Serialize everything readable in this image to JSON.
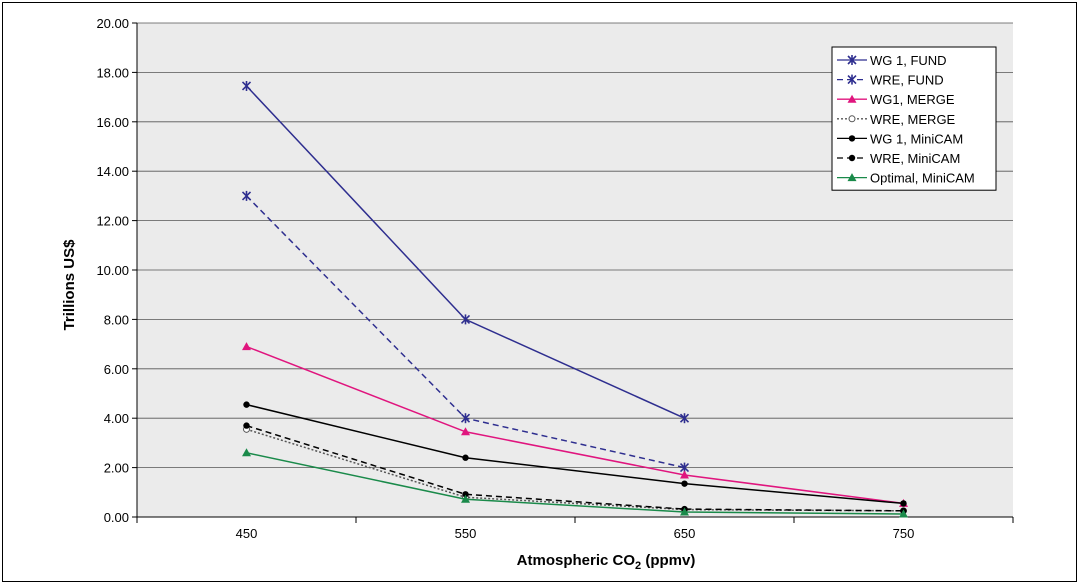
{
  "chart_data": {
    "type": "line",
    "xlabel": "Atmospheric CO",
    "xlabel_subscript": "2",
    "xlabel_suffix": " (ppmv)",
    "ylabel": "Trillions US$",
    "x": [
      450,
      550,
      650,
      750
    ],
    "x_tick_labels": [
      "450",
      "550",
      "650",
      "750"
    ],
    "y_ticks": [
      "0.00",
      "2.00",
      "4.00",
      "6.00",
      "8.00",
      "10.00",
      "12.00",
      "14.00",
      "16.00",
      "18.00",
      "20.00"
    ],
    "ylim": [
      0,
      20
    ],
    "xlim": [
      400,
      800
    ],
    "grid": true,
    "legend_position": "top-right",
    "plot_background": "#ebebeb",
    "series": [
      {
        "name": "WG 1, FUND",
        "values": [
          17.45,
          8.0,
          4.0,
          null
        ],
        "color": "#2e2e8f",
        "dash": "solid",
        "marker": "star"
      },
      {
        "name": "WRE,  FUND",
        "values": [
          13.0,
          4.0,
          2.0,
          null
        ],
        "color": "#2e2e8f",
        "dash": "dashed",
        "marker": "star"
      },
      {
        "name": "WG1, MERGE",
        "values": [
          6.9,
          3.45,
          1.7,
          0.55
        ],
        "color": "#e0157e",
        "dash": "solid",
        "marker": "triangle"
      },
      {
        "name": "WRE, MERGE",
        "values": [
          3.55,
          0.8,
          0.3,
          0.25
        ],
        "color": "#555555",
        "dash": "dotted",
        "marker": "open-circle"
      },
      {
        "name": "WG 1, MiniCAM",
        "values": [
          4.55,
          2.4,
          1.35,
          0.55
        ],
        "color": "#000000",
        "dash": "solid",
        "marker": "dot"
      },
      {
        "name": "WRE, MiniCAM",
        "values": [
          3.7,
          0.92,
          0.32,
          0.25
        ],
        "color": "#000000",
        "dash": "dashed",
        "marker": "dot"
      },
      {
        "name": "Optimal, MiniCAM",
        "values": [
          2.6,
          0.72,
          0.2,
          0.12
        ],
        "color": "#1a8a4a",
        "dash": "solid",
        "marker": "triangle"
      }
    ]
  }
}
